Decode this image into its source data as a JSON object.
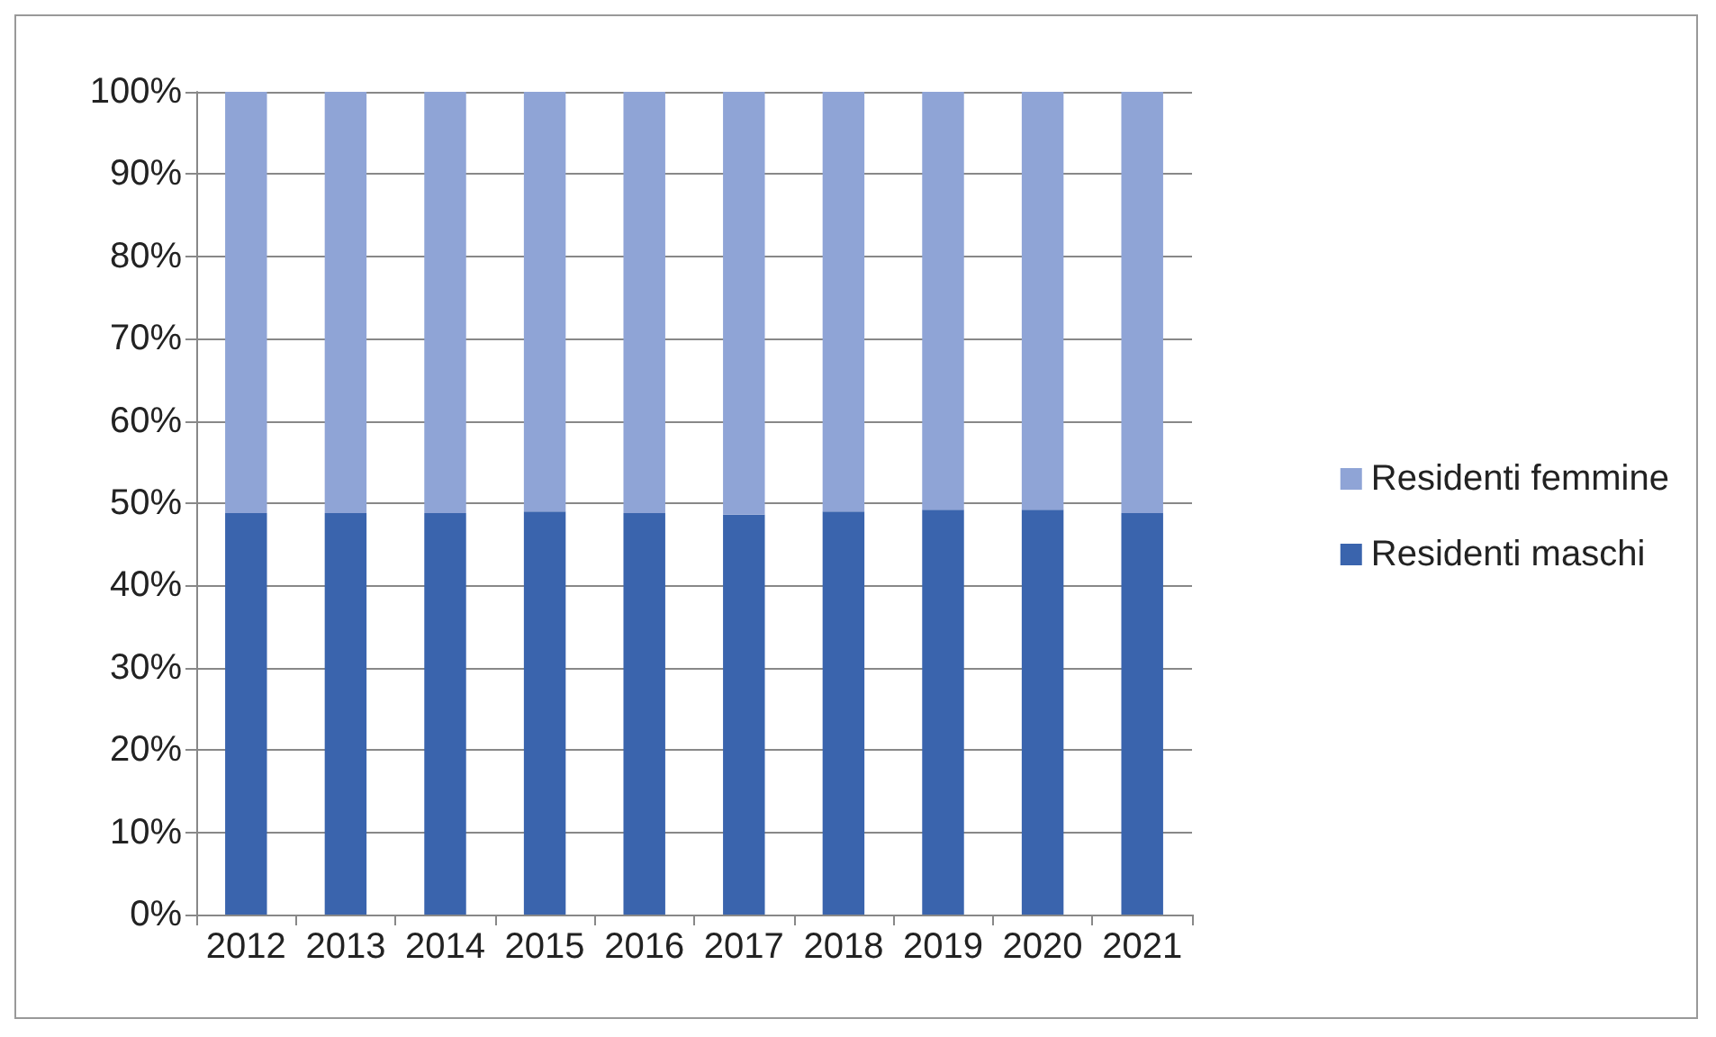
{
  "chart_data": {
    "type": "bar",
    "stacked": true,
    "categories": [
      "2012",
      "2013",
      "2014",
      "2015",
      "2016",
      "2017",
      "2018",
      "2019",
      "2020",
      "2021"
    ],
    "series": [
      {
        "name": "Residenti maschi",
        "color": "#3a64ad",
        "values": [
          48.8,
          48.8,
          48.8,
          49.0,
          48.8,
          48.6,
          49.0,
          49.2,
          49.2,
          48.8
        ]
      },
      {
        "name": "Residenti femmine",
        "color": "#8fa4d6",
        "values": [
          51.2,
          51.2,
          51.2,
          51.0,
          51.2,
          51.4,
          51.0,
          50.8,
          50.8,
          51.2
        ]
      }
    ],
    "ylim": [
      0,
      100
    ],
    "yticks": [
      {
        "value": 0,
        "label": "0%"
      },
      {
        "value": 10,
        "label": "10%"
      },
      {
        "value": 20,
        "label": "20%"
      },
      {
        "value": 30,
        "label": "30%"
      },
      {
        "value": 40,
        "label": "40%"
      },
      {
        "value": 50,
        "label": "50%"
      },
      {
        "value": 60,
        "label": "60%"
      },
      {
        "value": 70,
        "label": "70%"
      },
      {
        "value": 80,
        "label": "80%"
      },
      {
        "value": 90,
        "label": "90%"
      },
      {
        "value": 100,
        "label": "100%"
      }
    ],
    "grid": "y",
    "legend": "right"
  }
}
